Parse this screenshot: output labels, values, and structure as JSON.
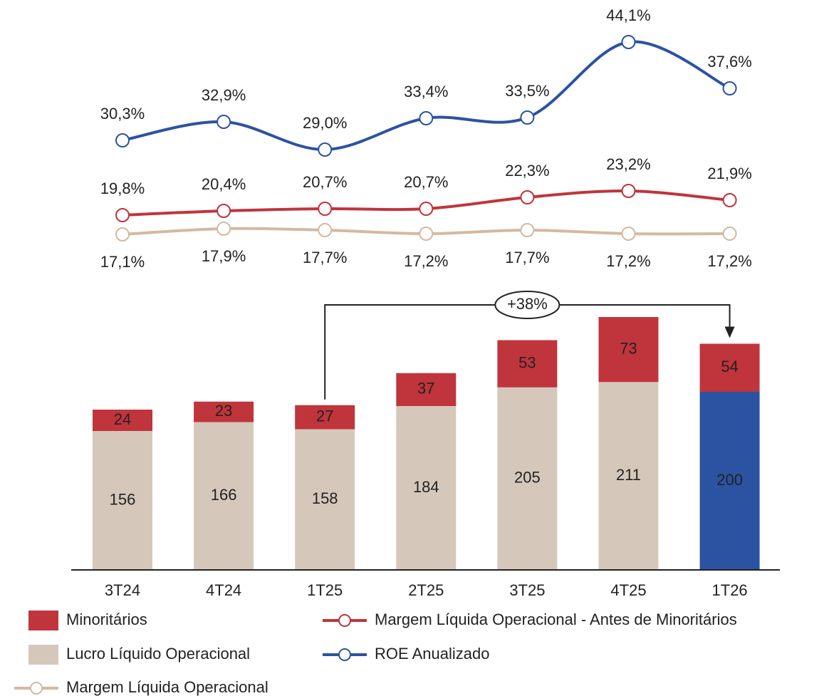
{
  "chart_data": {
    "type": "bar",
    "categories": [
      "3T24",
      "4T24",
      "1T25",
      "2T25",
      "3T25",
      "4T25",
      "1T26"
    ],
    "ylim": [
      0,
      640
    ],
    "y2lim": [
      -30,
      50
    ],
    "series": [
      {
        "name": "Minoritários",
        "type": "bar",
        "color": "#c0343c",
        "values": [
          24,
          23,
          27,
          37,
          53,
          73,
          54
        ]
      },
      {
        "name": "Margem Líquida Operacional - Antes de Minoritários",
        "type": "line",
        "axis": "y2",
        "color": "#c0343c",
        "values": [
          19.8,
          20.4,
          20.7,
          20.7,
          22.3,
          23.2,
          21.9
        ],
        "value_labels": [
          "19,8%",
          "20,4%",
          "20,7%",
          "20,7%",
          "22,3%",
          "23,2%",
          "21,9%"
        ]
      },
      {
        "name": "Lucro Líquido Operacional",
        "type": "bar",
        "color": "#d5c8bb",
        "point_colors": [
          "#d5c8bb",
          "#d5c8bb",
          "#d5c8bb",
          "#d5c8bb",
          "#d5c8bb",
          "#d5c8bb",
          "#2b53a1"
        ],
        "values": [
          156,
          166,
          158,
          184,
          205,
          211,
          200
        ]
      },
      {
        "name": "ROE Anualizado",
        "type": "line",
        "axis": "y2",
        "color": "#2b53a1",
        "values": [
          30.3,
          32.9,
          29.0,
          33.4,
          33.5,
          44.1,
          37.6
        ],
        "value_labels": [
          "30,3%",
          "32,9%",
          "29,0%",
          "33,4%",
          "33,5%",
          "44,1%",
          "37,6%"
        ]
      },
      {
        "name": "Margem Líquida Operacional",
        "type": "line",
        "axis": "y2",
        "color": "#d4b9a0",
        "values": [
          17.1,
          17.9,
          17.7,
          17.2,
          17.7,
          17.2,
          17.2
        ],
        "value_labels": [
          "17,1%",
          "17,9%",
          "17,7%",
          "17,2%",
          "17,7%",
          "17,2%",
          "17,2%"
        ]
      }
    ],
    "annotations": [
      {
        "text": "+38%",
        "from": "1T25",
        "to": "1T26"
      }
    ]
  }
}
